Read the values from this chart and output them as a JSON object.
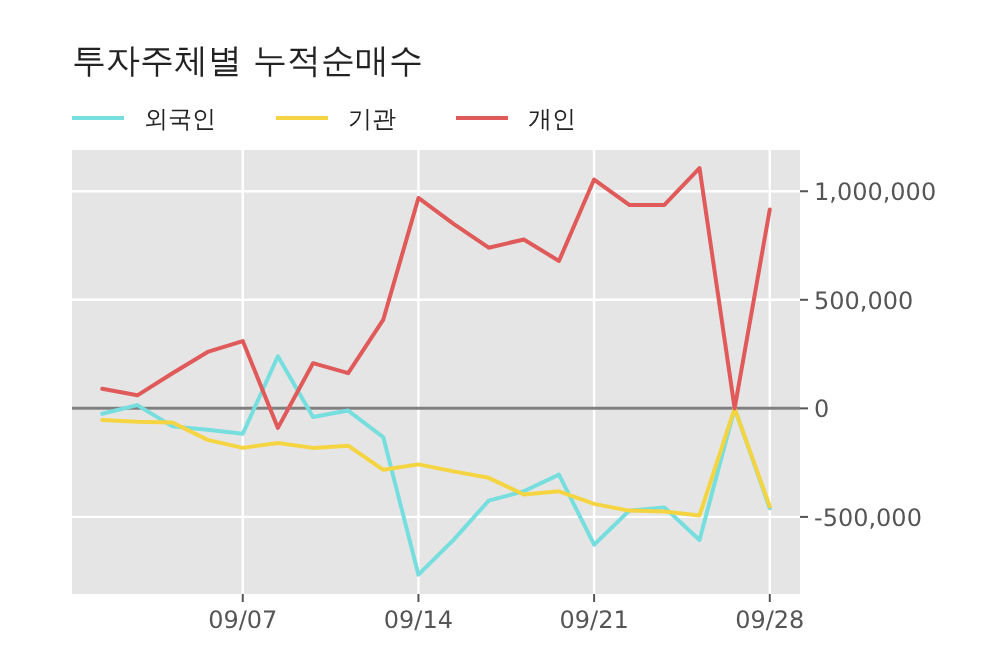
{
  "chart_data": {
    "type": "line",
    "title": "투자주체별 누적순매수",
    "categories": [
      null,
      null,
      null,
      null,
      "09/07",
      null,
      null,
      null,
      null,
      "09/14",
      null,
      null,
      null,
      null,
      "09/21",
      null,
      null,
      null,
      null,
      "09/28"
    ],
    "series": [
      {
        "name": "외국인",
        "color": "#76dede",
        "values": [
          -25000,
          15000,
          -83000,
          -99000,
          -117000,
          240000,
          -40000,
          -10000,
          -133000,
          -766000,
          -606000,
          -425000,
          -382000,
          -305000,
          -628000,
          -471000,
          -456000,
          -606000,
          0,
          -460000
        ]
      },
      {
        "name": "기관",
        "color": "#f5d442",
        "values": [
          -53000,
          -62000,
          -65000,
          -145000,
          -182000,
          -160000,
          -182000,
          -172000,
          -283000,
          -258000,
          -290000,
          -320000,
          -397000,
          -382000,
          -440000,
          -471000,
          -475000,
          -493000,
          0,
          -452000
        ]
      },
      {
        "name": "개인",
        "color": "#e05a5a",
        "values": [
          90000,
          60000,
          162000,
          260000,
          310000,
          -90000,
          208000,
          162000,
          409000,
          969000,
          850000,
          740000,
          778000,
          679000,
          1054000,
          937000,
          937000,
          1107000,
          0,
          916000
        ]
      }
    ],
    "ylim": [
      -855000,
      1190000
    ],
    "yticks": [
      {
        "value": -500000,
        "label": "-500,000"
      },
      {
        "value": 0,
        "label": "0"
      },
      {
        "value": 500000,
        "label": "500,000"
      },
      {
        "value": 1000000,
        "label": "1,000,000"
      }
    ],
    "ref_lines": [
      {
        "axis": "y",
        "value": 0,
        "color": "#808080"
      }
    ],
    "grid": true,
    "legend": "top left",
    "line_style": "solid",
    "marker": "none"
  }
}
